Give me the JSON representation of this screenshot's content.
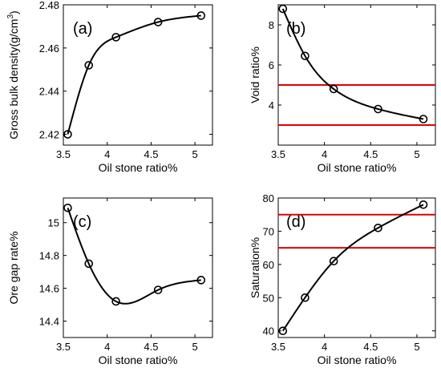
{
  "chart_data": [
    {
      "type": "line",
      "panel_label": "(a)",
      "xlabel": "Oil stone ratio%",
      "ylabel": "Gross bulk density(g/cm",
      "ylabel_sup": "3",
      "ylabel_end": ")",
      "x": [
        3.55,
        3.79,
        4.1,
        4.58,
        5.07
      ],
      "y": [
        2.42,
        2.452,
        2.465,
        2.472,
        2.475
      ],
      "xlim": [
        3.5,
        5.2
      ],
      "ylim": [
        2.415,
        2.48
      ],
      "xticks": [
        3.5,
        4,
        4.5,
        5
      ],
      "xtick_labels": [
        "3.5",
        "4",
        "4.5",
        "5"
      ],
      "yticks": [
        2.42,
        2.44,
        2.46,
        2.48
      ],
      "ytick_labels": [
        "2.42",
        "2.44",
        "2.46",
        "2.48"
      ],
      "hlines": [],
      "line_color": "#000000",
      "grid": false
    },
    {
      "type": "line",
      "panel_label": "(b)",
      "xlabel": "Oil stone ratio%",
      "ylabel": "Void ratio%",
      "x": [
        3.55,
        3.79,
        4.1,
        4.58,
        5.07
      ],
      "y": [
        8.8,
        6.45,
        4.8,
        3.8,
        3.3
      ],
      "xlim": [
        3.5,
        5.2
      ],
      "ylim": [
        2.0,
        9.0
      ],
      "xticks": [
        3.5,
        4,
        4.5,
        5
      ],
      "xtick_labels": [
        "3.5",
        "4",
        "4.5",
        "5"
      ],
      "yticks": [
        4,
        6,
        8
      ],
      "ytick_labels": [
        "4",
        "6",
        "8"
      ],
      "hlines": [
        5,
        3
      ],
      "hline_color": "#e00000",
      "line_color": "#000000",
      "grid": false
    },
    {
      "type": "line",
      "panel_label": "(c)",
      "xlabel": "Oil stone ratio%",
      "ylabel": "Ore gap rate%",
      "x": [
        3.55,
        3.79,
        4.1,
        4.58,
        5.07
      ],
      "y": [
        15.09,
        14.75,
        14.52,
        14.59,
        14.65
      ],
      "xlim": [
        3.5,
        5.2
      ],
      "ylim": [
        14.3,
        15.15
      ],
      "xticks": [
        3.5,
        4,
        4.5,
        5
      ],
      "xtick_labels": [
        "3.5",
        "4",
        "4.5",
        "5"
      ],
      "yticks": [
        14.4,
        14.6,
        14.8,
        15
      ],
      "ytick_labels": [
        "14.4",
        "14.6",
        "14.8",
        "15"
      ],
      "hlines": [],
      "line_color": "#000000",
      "grid": false
    },
    {
      "type": "line",
      "panel_label": "(d)",
      "xlabel": "Oil stone ratio%",
      "ylabel": "Saturation%",
      "x": [
        3.55,
        3.79,
        4.1,
        4.58,
        5.07
      ],
      "y": [
        40,
        50,
        61,
        71,
        78
      ],
      "xlim": [
        3.5,
        5.2
      ],
      "ylim": [
        38,
        80
      ],
      "xticks": [
        3.5,
        4,
        4.5,
        5
      ],
      "xtick_labels": [
        "3.5",
        "4",
        "4.5",
        "5"
      ],
      "yticks": [
        40,
        50,
        60,
        70,
        80
      ],
      "ytick_labels": [
        "40",
        "50",
        "60",
        "70",
        "80"
      ],
      "hlines": [
        75,
        65
      ],
      "hline_color": "#e00000",
      "line_color": "#000000",
      "grid": false
    }
  ]
}
